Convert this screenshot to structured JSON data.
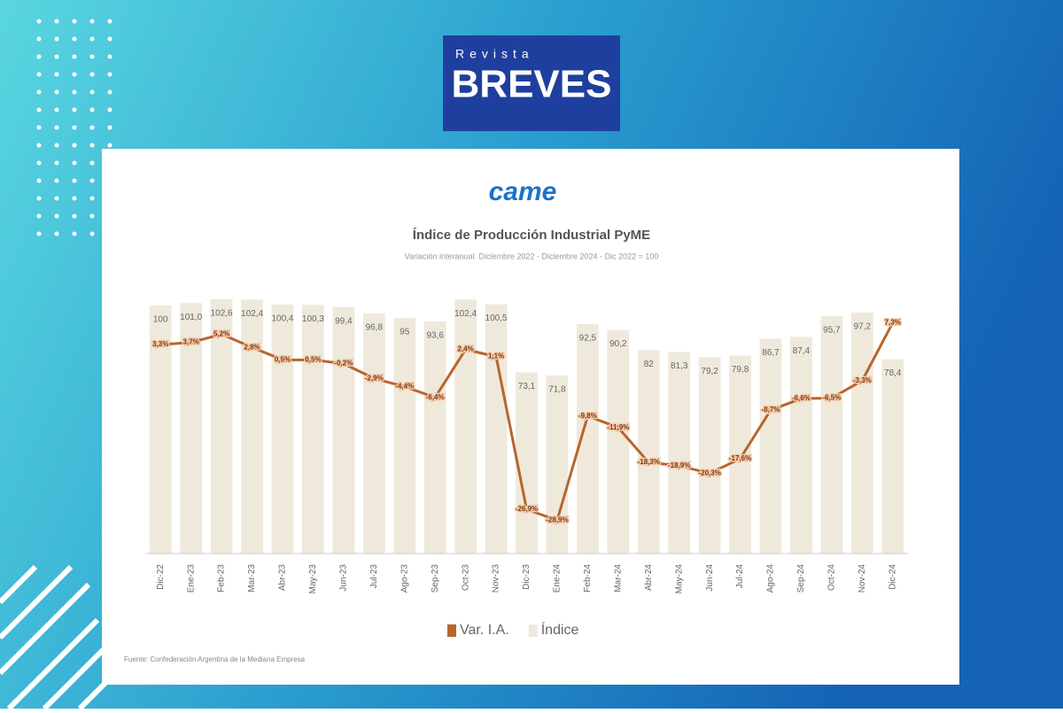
{
  "header": {
    "brand_small": "Revista",
    "brand": "BREVES"
  },
  "chart_data": {
    "type": "combo",
    "logo": "came",
    "title": "Índice de Producción Industrial PyME",
    "subtitle": "Variación interanual. Diciembre 2022 - Diciembre 2024 - Dic 2022 = 100",
    "source": "Fuente: Confederación Argentina de la Mediana Empresa",
    "categories": [
      "Dic-22",
      "Ene-23",
      "Feb-23",
      "Mar-23",
      "Abr-23",
      "May-23",
      "Jun-23",
      "Jul-23",
      "Ago-23",
      "Sep-23",
      "Oct-23",
      "Nov-23",
      "Dic-23",
      "Ene-24",
      "Feb-24",
      "Mar-24",
      "Abr-24",
      "May-24",
      "Jun-24",
      "Jul-24",
      "Ago-24",
      "Sep-24",
      "Oct-24",
      "Nov-24",
      "Dic-24"
    ],
    "ylim": [
      0,
      110
    ],
    "y2lim": [
      -35,
      15
    ],
    "series": [
      {
        "name": "Var. I.A.",
        "type": "line",
        "axis": "y2",
        "color": "#b8652c",
        "values": [
          3.3,
          3.7,
          5.2,
          2.8,
          0.5,
          0.5,
          -0.2,
          -2.9,
          -4.4,
          -6.4,
          2.4,
          1.1,
          -26.9,
          -28.9,
          -9.8,
          -11.9,
          -18.3,
          -18.9,
          -20.3,
          -17.6,
          -8.7,
          -6.6,
          -6.5,
          -3.3,
          7.3
        ],
        "value_labels": [
          "3,3%",
          "3,7%",
          "5,2%",
          "2,8%",
          "0,5%",
          "0,5%",
          "-0,2%",
          "-2,9%",
          "-4,4%",
          "-6,4%",
          "2,4%",
          "1,1%",
          "-26,9%",
          "-28,9%",
          "-9,8%",
          "-11,9%",
          "-18,3%",
          "-18,9%",
          "-20,3%",
          "-17,6%",
          "-8,7%",
          "-6,6%",
          "-6,5%",
          "-3,3%",
          "7,3%"
        ]
      },
      {
        "name": "Índice",
        "type": "bar",
        "color": "#efe9dc",
        "values": [
          100,
          101.0,
          102.6,
          102.4,
          100.4,
          100.3,
          99.4,
          96.8,
          95,
          93.6,
          102.4,
          100.5,
          73.1,
          71.8,
          92.5,
          90.2,
          82,
          81.3,
          79.2,
          79.8,
          86.7,
          87.4,
          95.7,
          97.2,
          78.4
        ],
        "value_labels": [
          "100",
          "101,0",
          "102,6",
          "102,4",
          "100,4",
          "100,3",
          "99,4",
          "96,8",
          "95",
          "93,6",
          "102,4",
          "100,5",
          "73,1",
          "71,8",
          "92,5",
          "90,2",
          "82",
          "81,3",
          "79,2",
          "79,8",
          "86,7",
          "87,4",
          "95,7",
          "97,2",
          "78,4"
        ]
      }
    ]
  }
}
